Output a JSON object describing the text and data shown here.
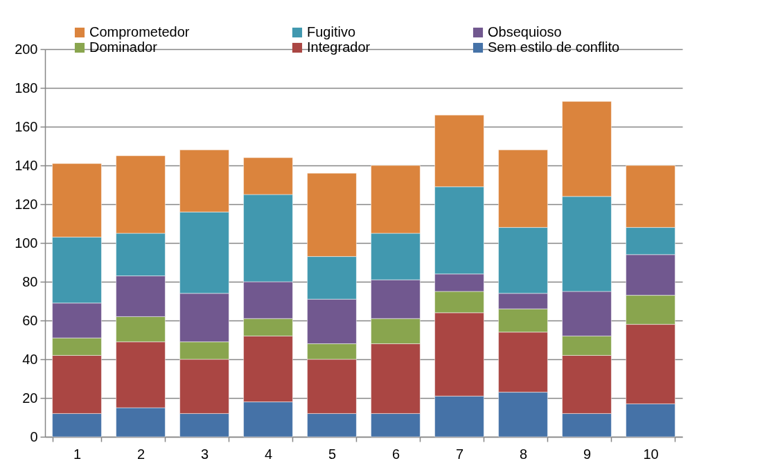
{
  "chart_data": {
    "type": "bar",
    "stacked": true,
    "categories": [
      "1",
      "2",
      "3",
      "4",
      "5",
      "6",
      "7",
      "8",
      "9",
      "10"
    ],
    "series": [
      {
        "name": "Sem estilo de conflito",
        "color": "#4572a7",
        "values": [
          12,
          15,
          12,
          18,
          12,
          12,
          21,
          23,
          12,
          17
        ]
      },
      {
        "name": "Integrador",
        "color": "#aa4643",
        "values": [
          30,
          34,
          28,
          34,
          28,
          36,
          43,
          31,
          30,
          41
        ]
      },
      {
        "name": "Dominador",
        "color": "#89a54e",
        "values": [
          9,
          13,
          9,
          9,
          8,
          13,
          11,
          12,
          10,
          15
        ]
      },
      {
        "name": "Obsequioso",
        "color": "#71588f",
        "values": [
          18,
          21,
          25,
          19,
          23,
          20,
          9,
          8,
          23,
          21
        ]
      },
      {
        "name": "Fugitivo",
        "color": "#4198af",
        "values": [
          34,
          22,
          42,
          45,
          22,
          24,
          45,
          34,
          49,
          14
        ]
      },
      {
        "name": "Comprometedor",
        "color": "#db843d",
        "values": [
          38,
          40,
          32,
          19,
          43,
          35,
          37,
          40,
          49,
          32
        ]
      }
    ],
    "ylim": [
      0,
      200
    ],
    "yticks": [
      0,
      20,
      40,
      60,
      80,
      100,
      120,
      140,
      160,
      180,
      200
    ],
    "grid": "y",
    "legend": "top"
  }
}
